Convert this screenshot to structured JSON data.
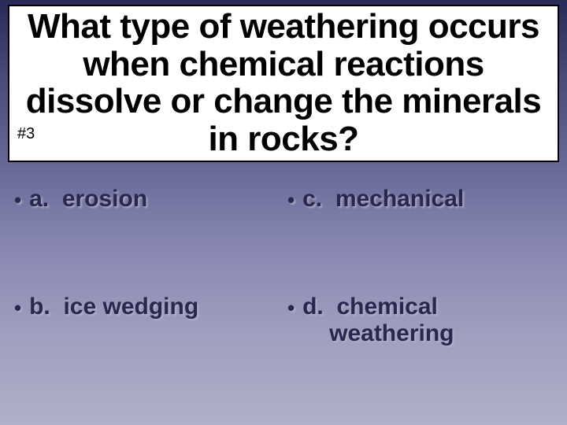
{
  "slide": {
    "background_gradient": [
      "#2a2a5a",
      "#4a4a7a",
      "#6a6a9a",
      "#8a8ab4",
      "#a0a0c0",
      "#b0b0c8"
    ],
    "question_banner": {
      "number_label": "#3",
      "text": "What type of weathering occurs when chemical reactions dissolve or change the minerals in rocks?",
      "background_color": "#ffffff",
      "border_color": "#000000",
      "text_color": "#000000",
      "font_size_pt": 33,
      "font_weight": 700
    },
    "answers": {
      "bullet_char": "•",
      "text_color": "#27274f",
      "shadow_color": "#b8b8cc",
      "font_size_pt": 22,
      "font_weight": 700,
      "layout": "2x2-grid",
      "items": [
        {
          "letter": "a.",
          "label": "erosion"
        },
        {
          "letter": "b.",
          "label": "ice wedging"
        },
        {
          "letter": "c.",
          "label": "mechanical"
        },
        {
          "letter": "d.",
          "label_line1": "chemical",
          "label_line2": "weathering"
        }
      ]
    }
  }
}
